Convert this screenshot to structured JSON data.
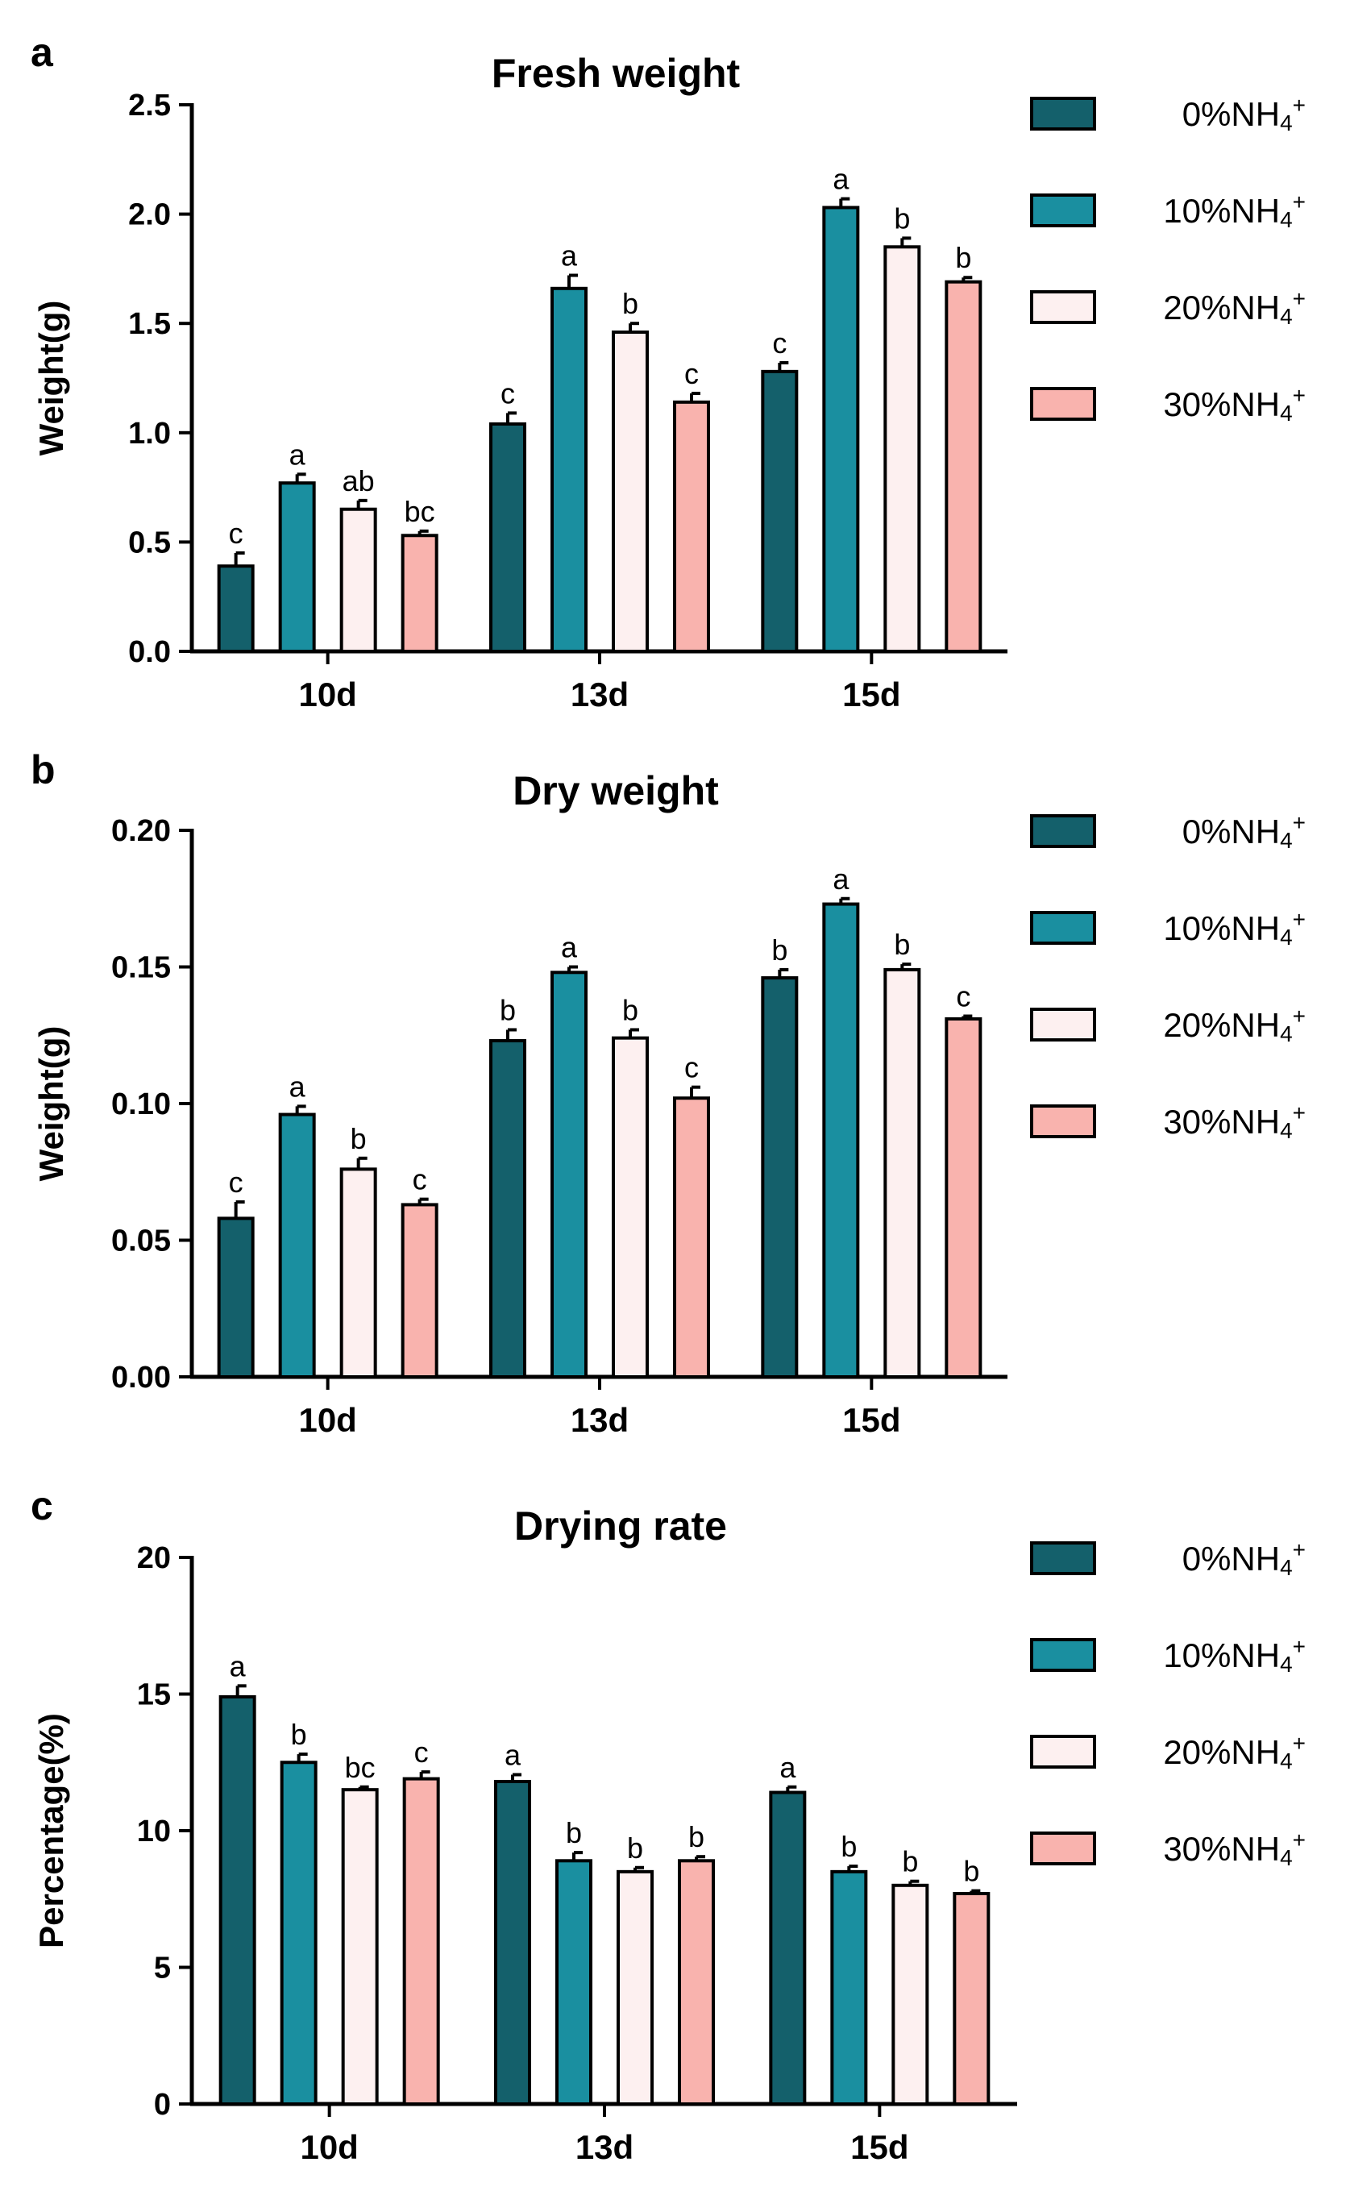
{
  "colors": {
    "0%NH4+": "#14606b",
    "10%NH4+": "#1a8fa0",
    "20%NH4+": "#fdf0f0",
    "30%NH4+": "#f9b3ae"
  },
  "chart_data": [
    {
      "type": "bar",
      "panel": "a",
      "title": "Fresh weight",
      "ylabel": "Weight(g)",
      "xlabel": "",
      "ylim": [
        0,
        2.5
      ],
      "yticks": [
        "0.0",
        "0.5",
        "1.0",
        "1.5",
        "2.0",
        "2.5"
      ],
      "yticks_values": [
        0,
        0.5,
        1.0,
        1.5,
        2.0,
        2.5
      ],
      "categories": [
        "10d",
        "13d",
        "15d"
      ],
      "legend": [
        "0%NH4+",
        "10%NH4+",
        "20%NH4+",
        "30%NH4+"
      ],
      "legend_labels": [
        {
          "base": "0%NH",
          "sub": "4",
          "sup": "+"
        },
        {
          "base": "10%NH",
          "sub": "4",
          "sup": "+"
        },
        {
          "base": "20%NH",
          "sub": "4",
          "sup": "+"
        },
        {
          "base": "30%NH",
          "sub": "4",
          "sup": "+"
        }
      ],
      "series": [
        {
          "name": "0%NH4+",
          "values": [
            0.39,
            1.04,
            1.28
          ],
          "errors": [
            0.06,
            0.05,
            0.04
          ],
          "labels": [
            "c",
            "c",
            "c"
          ]
        },
        {
          "name": "10%NH4+",
          "values": [
            0.77,
            1.66,
            2.03
          ],
          "errors": [
            0.04,
            0.06,
            0.04
          ],
          "labels": [
            "a",
            "a",
            "a"
          ]
        },
        {
          "name": "20%NH4+",
          "values": [
            0.65,
            1.46,
            1.85
          ],
          "errors": [
            0.04,
            0.04,
            0.04
          ],
          "labels": [
            "ab",
            "b",
            "b"
          ]
        },
        {
          "name": "30%NH4+",
          "values": [
            0.53,
            1.14,
            1.69
          ],
          "errors": [
            0.02,
            0.04,
            0.02
          ],
          "labels": [
            "bc",
            "c",
            "b"
          ]
        }
      ]
    },
    {
      "type": "bar",
      "panel": "b",
      "title": "Dry weight",
      "ylabel": "Weight(g)",
      "xlabel": "",
      "ylim": [
        0,
        0.2
      ],
      "yticks": [
        "0.00",
        "0.05",
        "0.10",
        "0.15",
        "0.20"
      ],
      "yticks_values": [
        0,
        0.05,
        0.1,
        0.15,
        0.2
      ],
      "categories": [
        "10d",
        "13d",
        "15d"
      ],
      "legend": [
        "0%NH4+",
        "10%NH4+",
        "20%NH4+",
        "30%NH4+"
      ],
      "legend_labels": [
        {
          "base": "0%NH",
          "sub": "4",
          "sup": "+"
        },
        {
          "base": "10%NH",
          "sub": "4",
          "sup": "+"
        },
        {
          "base": "20%NH",
          "sub": "4",
          "sup": "+"
        },
        {
          "base": "30%NH",
          "sub": "4",
          "sup": "+"
        }
      ],
      "series": [
        {
          "name": "0%NH4+",
          "values": [
            0.058,
            0.123,
            0.146
          ],
          "errors": [
            0.006,
            0.004,
            0.003
          ],
          "labels": [
            "c",
            "b",
            "b"
          ]
        },
        {
          "name": "10%NH4+",
          "values": [
            0.096,
            0.148,
            0.173
          ],
          "errors": [
            0.003,
            0.002,
            0.002
          ],
          "labels": [
            "a",
            "a",
            "a"
          ]
        },
        {
          "name": "20%NH4+",
          "values": [
            0.076,
            0.124,
            0.149
          ],
          "errors": [
            0.004,
            0.003,
            0.002
          ],
          "labels": [
            "b",
            "b",
            "b"
          ]
        },
        {
          "name": "30%NH4+",
          "values": [
            0.063,
            0.102,
            0.131
          ],
          "errors": [
            0.002,
            0.004,
            0.001
          ],
          "labels": [
            "c",
            "c",
            "c"
          ]
        }
      ]
    },
    {
      "type": "bar",
      "panel": "c",
      "title": "Drying rate",
      "ylabel": "Percentage(%)",
      "xlabel": "",
      "ylim": [
        0,
        20
      ],
      "yticks": [
        "0",
        "5",
        "10",
        "15",
        "20"
      ],
      "yticks_values": [
        0,
        5,
        10,
        15,
        20
      ],
      "categories": [
        "10d",
        "13d",
        "15d"
      ],
      "legend": [
        "0%NH4+",
        "10%NH4+",
        "20%NH4+",
        "30%NH4+"
      ],
      "legend_labels": [
        {
          "base": "0%NH",
          "sub": "4",
          "sup": "+"
        },
        {
          "base": "10%NH",
          "sub": "4",
          "sup": "+"
        },
        {
          "base": "20%NH",
          "sub": "4",
          "sup": "+"
        },
        {
          "base": "30%NH",
          "sub": "4",
          "sup": "+"
        }
      ],
      "series": [
        {
          "name": "0%NH4+",
          "values": [
            14.9,
            11.8,
            11.4
          ],
          "errors": [
            0.4,
            0.25,
            0.2
          ],
          "labels": [
            "a",
            "a",
            "a"
          ]
        },
        {
          "name": "10%NH4+",
          "values": [
            12.5,
            8.9,
            8.5
          ],
          "errors": [
            0.3,
            0.3,
            0.2
          ],
          "labels": [
            "b",
            "b",
            "b"
          ]
        },
        {
          "name": "20%NH4+",
          "values": [
            11.5,
            8.5,
            8.0
          ],
          "errors": [
            0.1,
            0.15,
            0.15
          ],
          "labels": [
            "bc",
            "b",
            "b"
          ]
        },
        {
          "name": "30%NH4+",
          "values": [
            11.9,
            8.9,
            7.7
          ],
          "errors": [
            0.25,
            0.15,
            0.1
          ],
          "labels": [
            "c",
            "b",
            "b"
          ]
        }
      ]
    }
  ]
}
